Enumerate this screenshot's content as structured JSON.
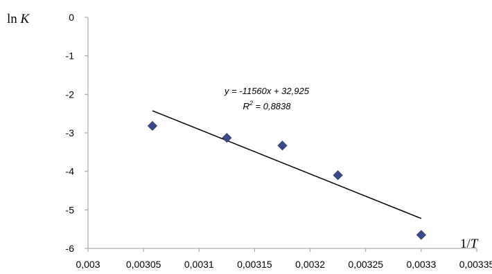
{
  "chart_data": {
    "type": "scatter",
    "title": "",
    "xlabel": "1/T",
    "ylabel": "ln K",
    "xlim": [
      0.003,
      0.00335
    ],
    "ylim": [
      -6,
      0
    ],
    "x_ticks": [
      "0,003",
      "0,00305",
      "0,0031",
      "0,00315",
      "0,0032",
      "0,00325",
      "0,0033",
      "0,00335"
    ],
    "y_ticks": [
      "0",
      "-1",
      "-2",
      "-3",
      "-4",
      "-5",
      "-6"
    ],
    "grid": false,
    "legend": "none",
    "marker_color": "#3b4a8c",
    "series": [
      {
        "x": [
          0.003058,
          0.003125,
          0.003175,
          0.003225,
          0.0033
        ],
        "y": [
          -2.82,
          -3.13,
          -3.33,
          -4.1,
          -5.65
        ]
      }
    ],
    "trendline": {
      "slope": -11560,
      "intercept": 32.925,
      "x_range": [
        0.003058,
        0.0033
      ],
      "equation": "y = -11560x + 32,925",
      "r2_label": "R",
      "r2_value": " = 0,8838"
    }
  }
}
